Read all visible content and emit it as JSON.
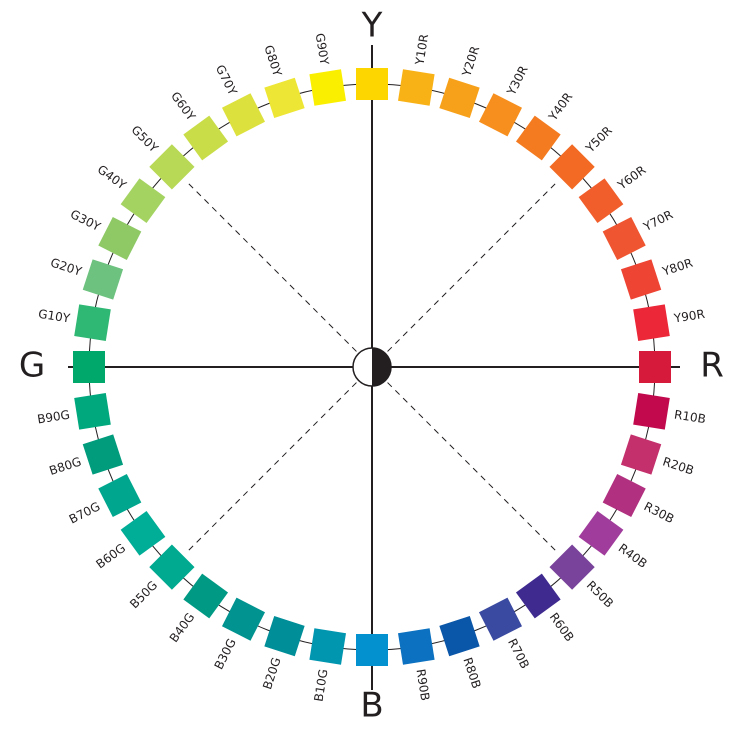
{
  "primaries": [
    {
      "label": "Y",
      "color": "#fdd600"
    },
    {
      "label": "R",
      "color": "#d61a3c"
    },
    {
      "label": "B",
      "color": "#0391d0"
    },
    {
      "label": "G",
      "color": "#00a86b"
    }
  ],
  "hues": [
    {
      "label": "Y10R",
      "color": "#f9b216"
    },
    {
      "label": "Y20R",
      "color": "#f7a11a"
    },
    {
      "label": "Y30R",
      "color": "#f68f1e"
    },
    {
      "label": "Y40R",
      "color": "#f47b20"
    },
    {
      "label": "Y50R",
      "color": "#f26a24"
    },
    {
      "label": "Y60R",
      "color": "#f15e2c"
    },
    {
      "label": "Y70R",
      "color": "#ef5530"
    },
    {
      "label": "Y80R",
      "color": "#ee4434"
    },
    {
      "label": "Y90R",
      "color": "#ec2738"
    },
    {
      "label": "R10B",
      "color": "#c2094e"
    },
    {
      "label": "R20B",
      "color": "#c4306c"
    },
    {
      "label": "R30B",
      "color": "#b1307f"
    },
    {
      "label": "R40B",
      "color": "#a03c9c"
    },
    {
      "label": "R50B",
      "color": "#79439b"
    },
    {
      "label": "R60B",
      "color": "#3f2a8f"
    },
    {
      "label": "R70B",
      "color": "#3a4aa0"
    },
    {
      "label": "R80B",
      "color": "#0a56a8"
    },
    {
      "label": "R90B",
      "color": "#0c71c0"
    },
    {
      "label": "B10G",
      "color": "#0096b0"
    },
    {
      "label": "B20G",
      "color": "#008e99"
    },
    {
      "label": "B30G",
      "color": "#01938f"
    },
    {
      "label": "B40G",
      "color": "#009a84"
    },
    {
      "label": "B50G",
      "color": "#00aa91"
    },
    {
      "label": "B60G",
      "color": "#00ad96"
    },
    {
      "label": "B70G",
      "color": "#00a78e"
    },
    {
      "label": "B80G",
      "color": "#009c7c"
    },
    {
      "label": "B90G",
      "color": "#00a87e"
    },
    {
      "label": "G10Y",
      "color": "#2fb874"
    },
    {
      "label": "G20Y",
      "color": "#6cc27e"
    },
    {
      "label": "G30Y",
      "color": "#8ec966"
    },
    {
      "label": "G40Y",
      "color": "#a5d362"
    },
    {
      "label": "G50Y",
      "color": "#b8d955"
    },
    {
      "label": "G60Y",
      "color": "#c9dd48"
    },
    {
      "label": "G70Y",
      "color": "#dde13d"
    },
    {
      "label": "G80Y",
      "color": "#eee634"
    },
    {
      "label": "G90Y",
      "color": "#fbef00"
    }
  ]
}
